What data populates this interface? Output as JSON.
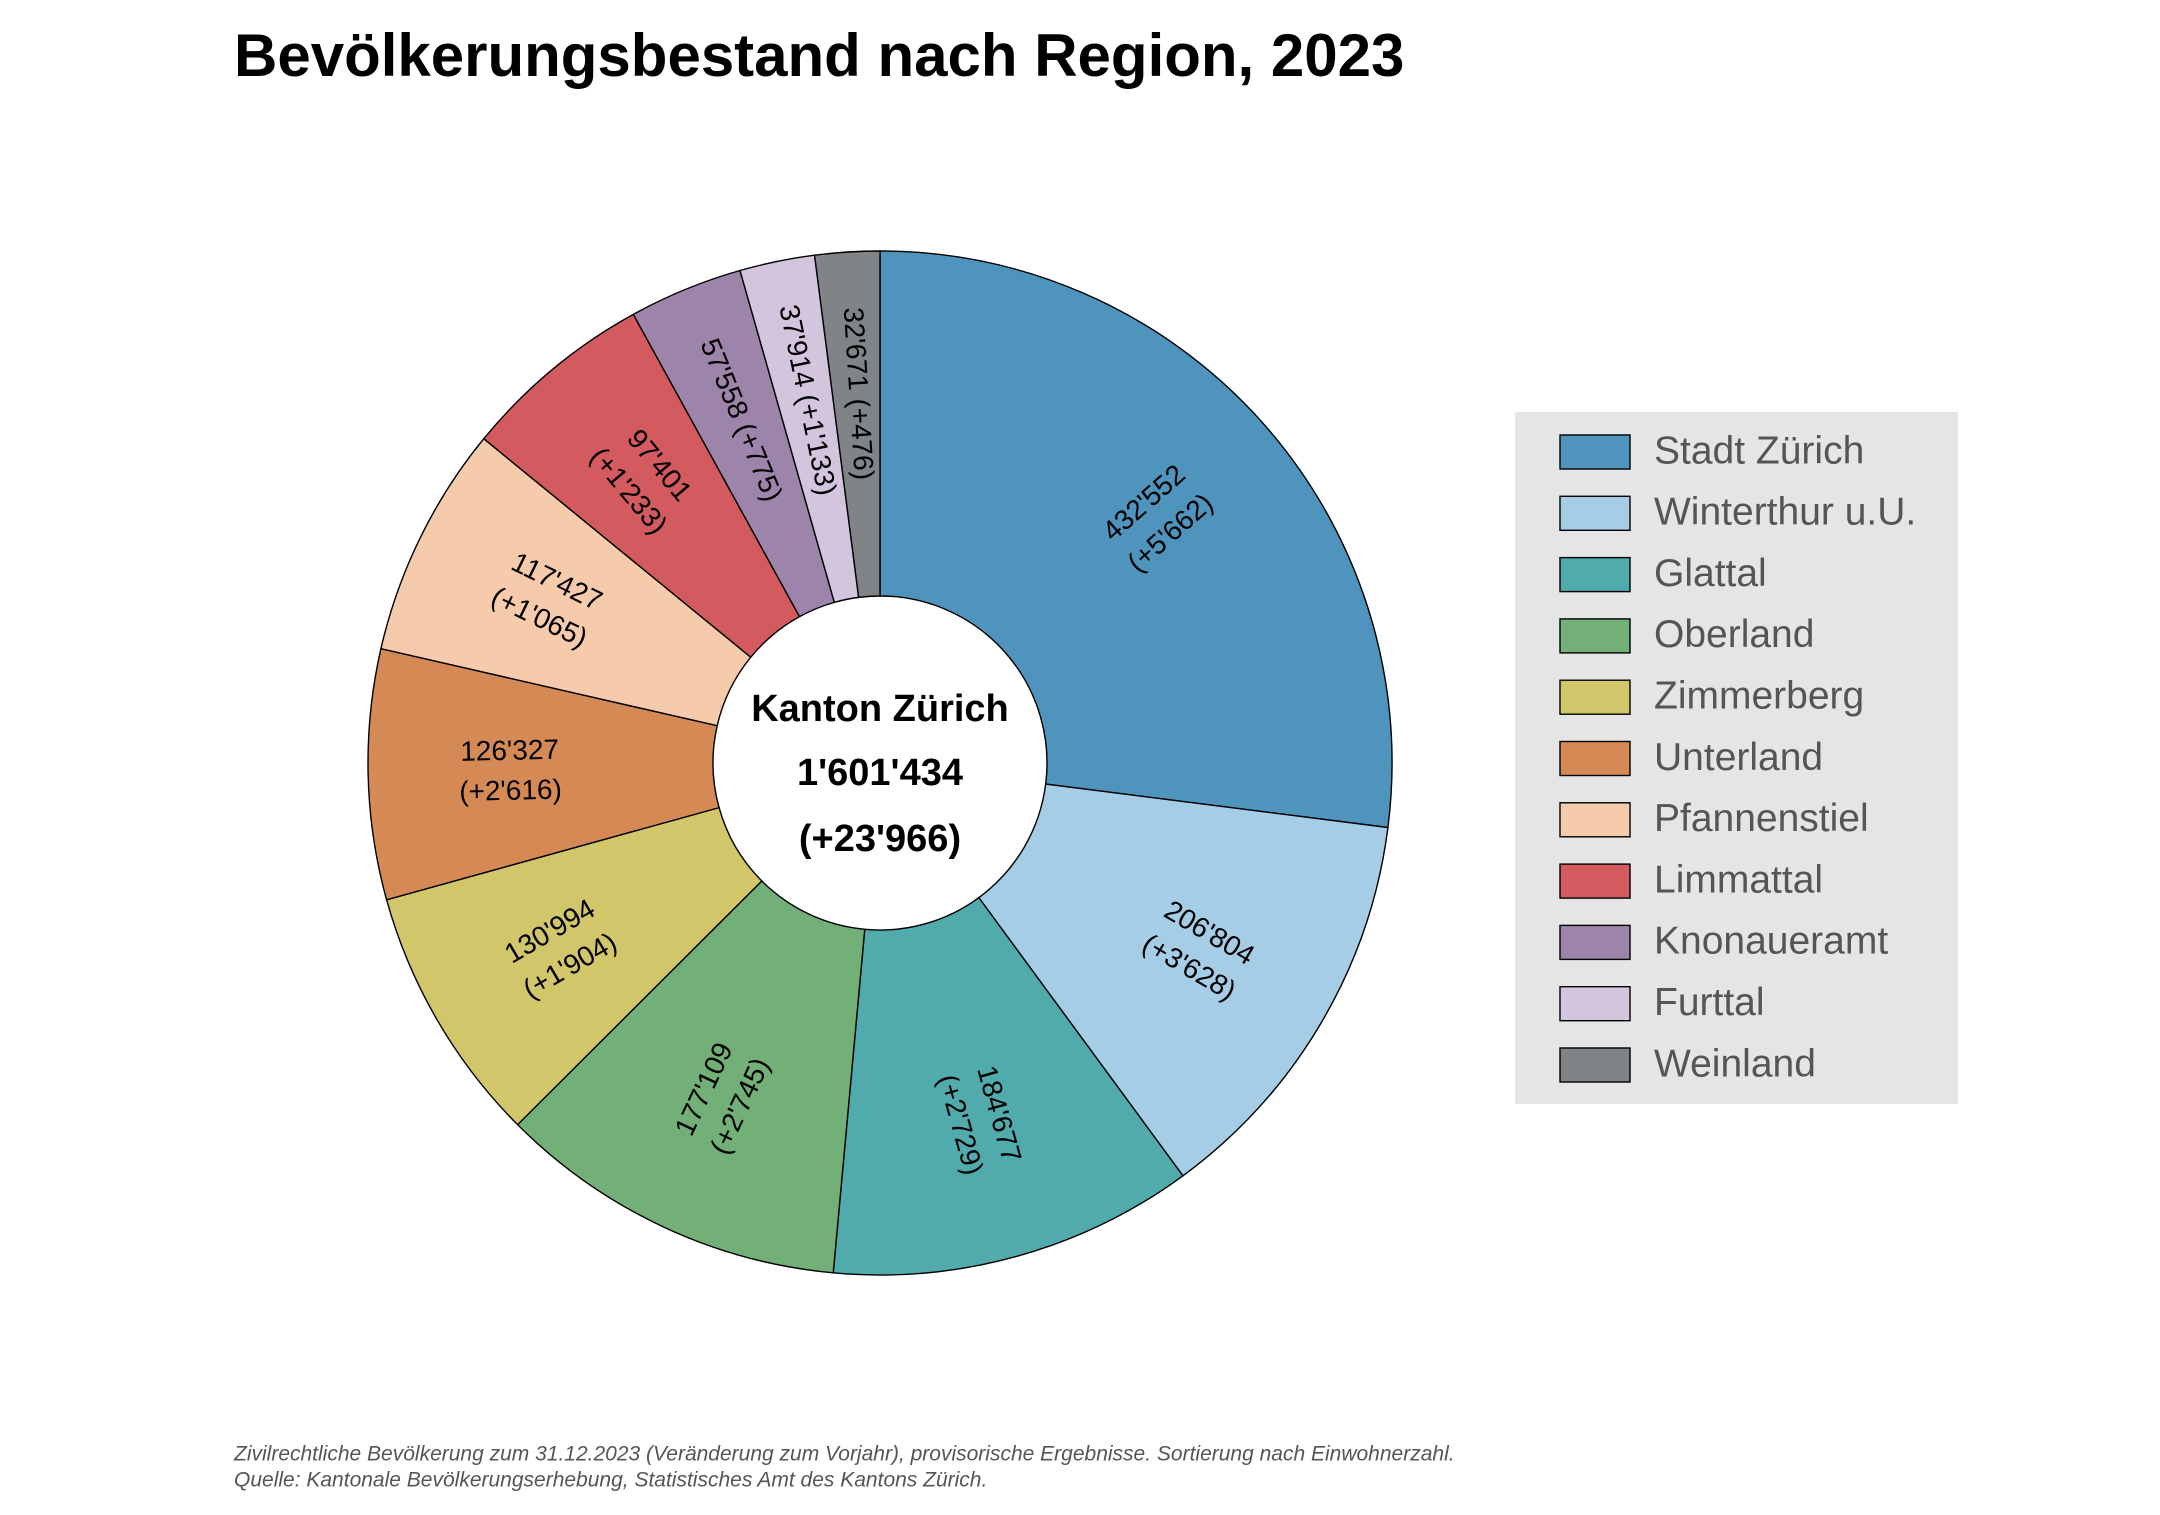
{
  "chart_data": {
    "type": "donut",
    "title": "Bevölkerungsbestand nach Region, 2023",
    "categories": [
      "Stadt Zürich",
      "Winterthur u.U.",
      "Glattal",
      "Oberland",
      "Zimmerberg",
      "Unterland",
      "Pfannenstiel",
      "Limmattal",
      "Knonaueramt",
      "Furttal",
      "Weinland"
    ],
    "values": [
      432552,
      206804,
      184677,
      177109,
      130994,
      126327,
      117427,
      97401,
      57558,
      37914,
      32671
    ],
    "value_labels": [
      "432'552",
      "206'804",
      "184'677",
      "177'109",
      "130'994",
      "126'327",
      "117'427",
      "97'401",
      "57'558",
      "37'914",
      "32'671"
    ],
    "changes": [
      5662,
      3628,
      2729,
      2745,
      1904,
      2616,
      1065,
      1233,
      775,
      1133,
      476
    ],
    "change_labels": [
      "(+5'662)",
      "(+3'628)",
      "(+2'729)",
      "(+2'745)",
      "(+1'904)",
      "(+2'616)",
      "(+1'065)",
      "(+1'233)",
      "(+775)",
      "(+1'133)",
      "(+476)"
    ],
    "colors": [
      "#4f94bc",
      "#a6cde6",
      "#51aaac",
      "#73b077",
      "#d2c66b",
      "#d58a56",
      "#f6cbab",
      "#d35a5f",
      "#9d84aa",
      "#d4c5de",
      "#808487"
    ],
    "center_title": "Kanton Zürich",
    "total": 1601434,
    "total_label": "1'601'434",
    "total_change": 23966,
    "total_change_label": "(+23'966)",
    "legend": "right",
    "notes": [
      "Zivilrechtliche Bevölkerung zum 31.12.2023 (Veränderung zum Vorjahr), provisorische Ergebnisse. Sortierung nach Einwohnerzahl.",
      "Quelle: Kantonale Bevölkerungserhebung, Statistisches Amt des Kantons Zürich."
    ]
  }
}
